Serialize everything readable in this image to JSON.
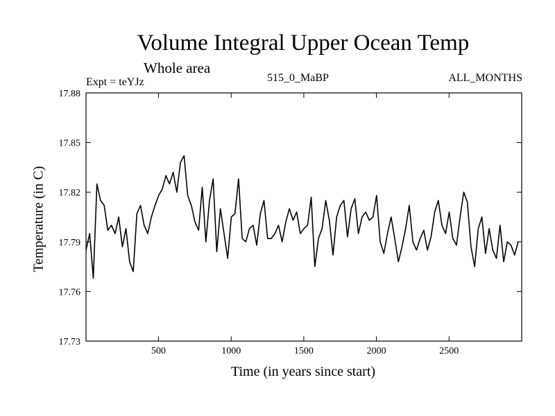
{
  "chart_data": {
    "type": "line",
    "title": "Volume Integral Upper Ocean Temp",
    "subtitle": "Whole area",
    "annotations": {
      "expt": "Expt = teYJz",
      "period": "515_0_MaBP",
      "months": "ALL_MONTHS"
    },
    "xlabel": "Time (in years since start)",
    "ylabel": "Temperature (in C)",
    "xlim": [
      1,
      3000
    ],
    "ylim": [
      17.73,
      17.88
    ],
    "xticks": [
      500,
      1000,
      1500,
      2000,
      2500
    ],
    "xtick_labels": [
      "500",
      "1000",
      "1500",
      "2000",
      "2500"
    ],
    "yticks": [
      17.73,
      17.76,
      17.79,
      17.82,
      17.85,
      17.88
    ],
    "ytick_labels": [
      "17.73",
      "17.76",
      "17.79",
      "17.82",
      "17.85",
      "17.88"
    ],
    "grid": false,
    "series": [
      {
        "name": "Volume integral upper ocean temperature",
        "x_start": 1,
        "x_step": 25,
        "values": [
          17.785,
          17.795,
          17.768,
          17.825,
          17.815,
          17.812,
          17.797,
          17.8,
          17.795,
          17.805,
          17.787,
          17.798,
          17.778,
          17.772,
          17.807,
          17.812,
          17.8,
          17.795,
          17.805,
          17.812,
          17.818,
          17.822,
          17.83,
          17.825,
          17.832,
          17.82,
          17.838,
          17.842,
          17.818,
          17.812,
          17.802,
          17.797,
          17.823,
          17.79,
          17.815,
          17.828,
          17.784,
          17.81,
          17.795,
          17.78,
          17.805,
          17.807,
          17.828,
          17.792,
          17.79,
          17.798,
          17.8,
          17.788,
          17.807,
          17.815,
          17.792,
          17.792,
          17.795,
          17.8,
          17.79,
          17.802,
          17.81,
          17.803,
          17.808,
          17.795,
          17.798,
          17.8,
          17.817,
          17.775,
          17.792,
          17.798,
          17.815,
          17.803,
          17.782,
          17.805,
          17.812,
          17.815,
          17.793,
          17.81,
          17.816,
          17.795,
          17.805,
          17.808,
          17.803,
          17.805,
          17.818,
          17.79,
          17.783,
          17.795,
          17.805,
          17.792,
          17.778,
          17.787,
          17.798,
          17.812,
          17.79,
          17.785,
          17.792,
          17.797,
          17.785,
          17.793,
          17.808,
          17.815,
          17.8,
          17.795,
          17.808,
          17.792,
          17.788,
          17.805,
          17.82,
          17.814,
          17.787,
          17.775,
          17.798,
          17.805,
          17.783,
          17.798,
          17.785,
          17.78,
          17.8,
          17.778,
          17.79,
          17.788,
          17.782,
          17.79
        ]
      }
    ]
  }
}
